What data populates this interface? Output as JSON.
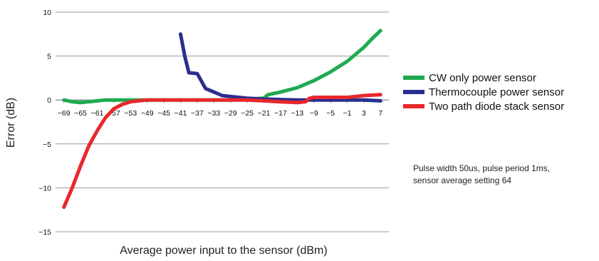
{
  "chart_data": {
    "type": "line",
    "title": "",
    "xlabel": "Average power input to the sensor (dBm)",
    "ylabel": "Error (dB)",
    "xlim": [
      -71,
      9
    ],
    "ylim": [
      -15,
      10
    ],
    "x_ticks": [
      "−69",
      "−65",
      "−61",
      "−57",
      "−53",
      "−49",
      "−45",
      "−41",
      "−37",
      "−33",
      "−29",
      "−25",
      "−21",
      "−17",
      "−13",
      "−9",
      "−5",
      "−1",
      "3",
      "7"
    ],
    "x_tick_values": [
      -69,
      -65,
      -61,
      -57,
      -53,
      -49,
      -45,
      -41,
      -37,
      -33,
      -29,
      -25,
      -21,
      -17,
      -13,
      -9,
      -5,
      -1,
      3,
      7
    ],
    "y_ticks": [
      "10",
      "5",
      "0",
      "−5",
      "−10",
      "−15"
    ],
    "y_tick_values": [
      10,
      5,
      0,
      -5,
      -10,
      -15
    ],
    "grid": "horizontal",
    "legend_position": "right",
    "series": [
      {
        "name": "CW only power sensor",
        "color": "#1faa4f",
        "x": [
          -69,
          -67,
          -65,
          -63,
          -61,
          -59,
          -57,
          -53,
          -49,
          -45,
          -41,
          -37,
          -33,
          -29,
          -25,
          -21,
          -20,
          -17,
          -13,
          -9,
          -5,
          -1,
          1,
          3,
          5,
          7
        ],
        "y": [
          0,
          -0.2,
          -0.3,
          -0.2,
          -0.1,
          0,
          0,
          0,
          0,
          0,
          0,
          0,
          0,
          0,
          0.1,
          0.2,
          0.6,
          0.9,
          1.4,
          2.2,
          3.2,
          4.4,
          5.2,
          6.0,
          7.0,
          7.9
        ]
      },
      {
        "name": "Thermocouple power sensor",
        "color": "#2a2e8f",
        "x": [
          -41,
          -40,
          -39,
          -37,
          -35,
          -33,
          -31,
          -29,
          -25,
          -21,
          -17,
          -13,
          -9,
          -5,
          -1,
          3,
          7
        ],
        "y": [
          7.5,
          5.0,
          3.1,
          3.0,
          1.3,
          0.9,
          0.5,
          0.4,
          0.2,
          0.1,
          0.05,
          0,
          0,
          0,
          0,
          0,
          -0.1
        ]
      },
      {
        "name": "Two path diode stack sensor",
        "color": "#e8282d",
        "x": [
          -69,
          -67,
          -65,
          -63,
          -61,
          -59,
          -57,
          -55,
          -53,
          -51,
          -49,
          -45,
          -41,
          -37,
          -33,
          -29,
          -25,
          -21,
          -17,
          -13,
          -11,
          -10,
          -9,
          -5,
          -1,
          1,
          3,
          7
        ],
        "y": [
          -12.2,
          -10.0,
          -7.5,
          -5.2,
          -3.5,
          -2.0,
          -1.0,
          -0.5,
          -0.2,
          -0.1,
          0,
          0,
          0,
          0,
          0,
          0,
          0,
          -0.1,
          -0.2,
          -0.3,
          -0.2,
          0.2,
          0.3,
          0.3,
          0.3,
          0.4,
          0.5,
          0.6
        ]
      }
    ],
    "annotation": "Pulse width 50us, pulse period 1ms, sensor average setting 64"
  }
}
